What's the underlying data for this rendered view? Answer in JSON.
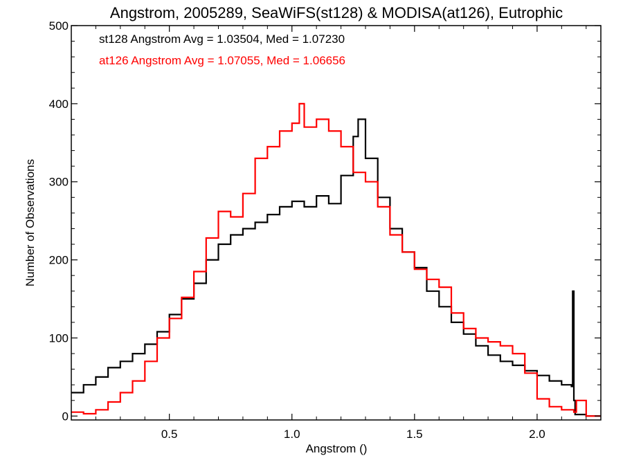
{
  "chart_data": {
    "type": "line",
    "title": "Angstrom, 2005289, SeaWiFS(st128) & MODISA(at126), Eutrophic",
    "xlabel": "Angstrom ()",
    "ylabel": "Number of Observations",
    "xlim": [
      0.1,
      2.26
    ],
    "ylim": [
      -5,
      500
    ],
    "x_ticks": [
      0.5,
      1.0,
      1.5,
      2.0
    ],
    "x_tick_labels": [
      "0.5",
      "1.0",
      "1.5",
      "2.0"
    ],
    "y_ticks": [
      0,
      100,
      200,
      300,
      400,
      500
    ],
    "y_tick_labels": [
      "0",
      "100",
      "200",
      "300",
      "400",
      "500"
    ],
    "grid": false,
    "legend_placement": "top-left",
    "series": [
      {
        "name": "st128",
        "legend": "st128 Angstrom Avg = 1.03504, Med = 1.07230",
        "color": "#000000",
        "step": true,
        "x": [
          0.1,
          0.15,
          0.2,
          0.25,
          0.3,
          0.35,
          0.4,
          0.45,
          0.5,
          0.55,
          0.6,
          0.65,
          0.7,
          0.75,
          0.8,
          0.85,
          0.9,
          0.95,
          1.0,
          1.05,
          1.1,
          1.15,
          1.2,
          1.25,
          1.27,
          1.3,
          1.35,
          1.4,
          1.45,
          1.5,
          1.55,
          1.6,
          1.65,
          1.7,
          1.75,
          1.8,
          1.85,
          1.9,
          1.95,
          2.0,
          2.05,
          2.1,
          2.14,
          2.145,
          2.15,
          2.155,
          2.2,
          2.26
        ],
        "y": [
          30,
          40,
          50,
          62,
          70,
          80,
          92,
          108,
          130,
          150,
          170,
          200,
          220,
          232,
          240,
          248,
          258,
          268,
          275,
          268,
          282,
          272,
          308,
          358,
          380,
          330,
          280,
          240,
          210,
          190,
          160,
          140,
          120,
          105,
          90,
          78,
          70,
          65,
          58,
          52,
          45,
          40,
          38,
          160,
          20,
          2,
          0,
          0
        ]
      },
      {
        "name": "at126",
        "legend": "at126 Angstrom Avg = 1.07055, Med = 1.06656",
        "color": "#ff0000",
        "step": true,
        "x": [
          0.1,
          0.15,
          0.2,
          0.25,
          0.3,
          0.35,
          0.4,
          0.45,
          0.5,
          0.55,
          0.6,
          0.65,
          0.7,
          0.75,
          0.8,
          0.85,
          0.9,
          0.95,
          1.0,
          1.03,
          1.05,
          1.1,
          1.15,
          1.2,
          1.25,
          1.3,
          1.35,
          1.4,
          1.45,
          1.5,
          1.55,
          1.6,
          1.65,
          1.7,
          1.75,
          1.8,
          1.85,
          1.9,
          1.95,
          2.0,
          2.05,
          2.1,
          2.15,
          2.16,
          2.2,
          2.26
        ],
        "y": [
          5,
          3,
          8,
          18,
          30,
          45,
          70,
          100,
          125,
          152,
          185,
          228,
          262,
          255,
          285,
          330,
          345,
          365,
          375,
          400,
          370,
          380,
          365,
          345,
          312,
          300,
          268,
          232,
          210,
          188,
          175,
          165,
          132,
          112,
          100,
          95,
          90,
          80,
          55,
          22,
          12,
          8,
          5,
          20,
          0,
          0
        ]
      }
    ]
  }
}
